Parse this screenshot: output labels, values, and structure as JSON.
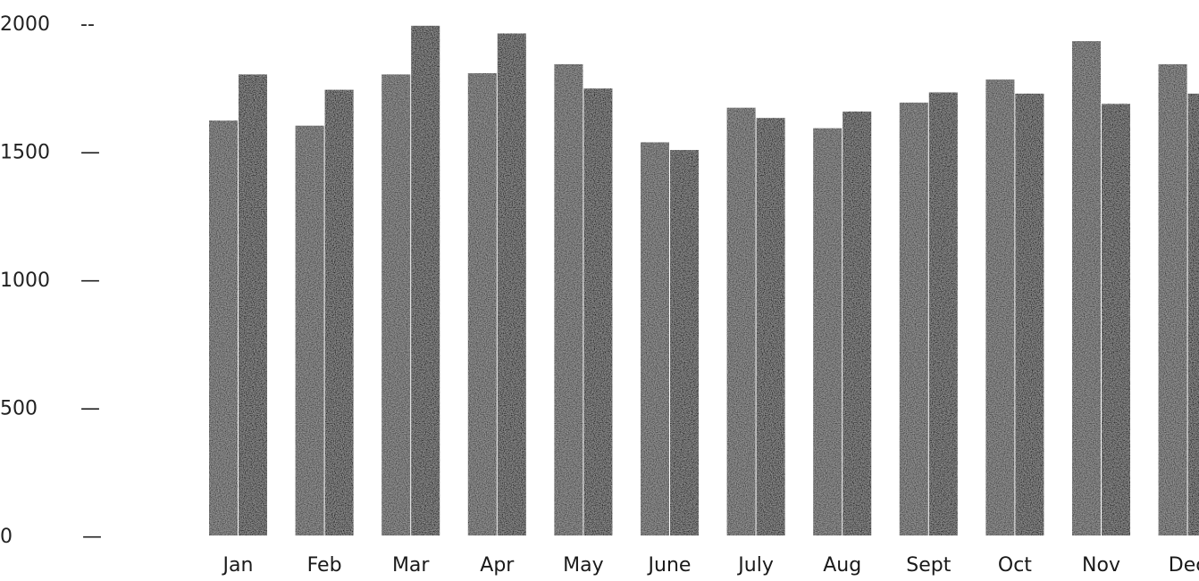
{
  "chart_data": {
    "type": "bar",
    "title": "",
    "xlabel": "",
    "ylabel": "",
    "ylim": [
      0,
      2000
    ],
    "yticks": [
      {
        "value": 2000,
        "label": "2000",
        "mark": "--"
      },
      {
        "value": 1500,
        "label": "1500",
        "mark": "—"
      },
      {
        "value": 1000,
        "label": "1000",
        "mark": "—"
      },
      {
        "value": 500,
        "label": "500",
        "mark": "—"
      },
      {
        "value": 0,
        "label": "0",
        "mark": "—"
      }
    ],
    "categories": [
      "Jan",
      "Feb",
      "Mar",
      "Apr",
      "May",
      "June",
      "July",
      "Aug",
      "Sept",
      "Oct",
      "Nov",
      "Dec"
    ],
    "series": [
      {
        "color": "#3a3a3a",
        "values": [
          1620,
          1600,
          1800,
          1805,
          1840,
          1535,
          1670,
          1590,
          1690,
          1780,
          1930,
          1840
        ]
      },
      {
        "color": "#080808",
        "values": [
          1800,
          1740,
          1990,
          1960,
          1745,
          1505,
          1630,
          1655,
          1730,
          1725,
          1685,
          1725
        ]
      }
    ],
    "grid": false,
    "legend": "none"
  }
}
